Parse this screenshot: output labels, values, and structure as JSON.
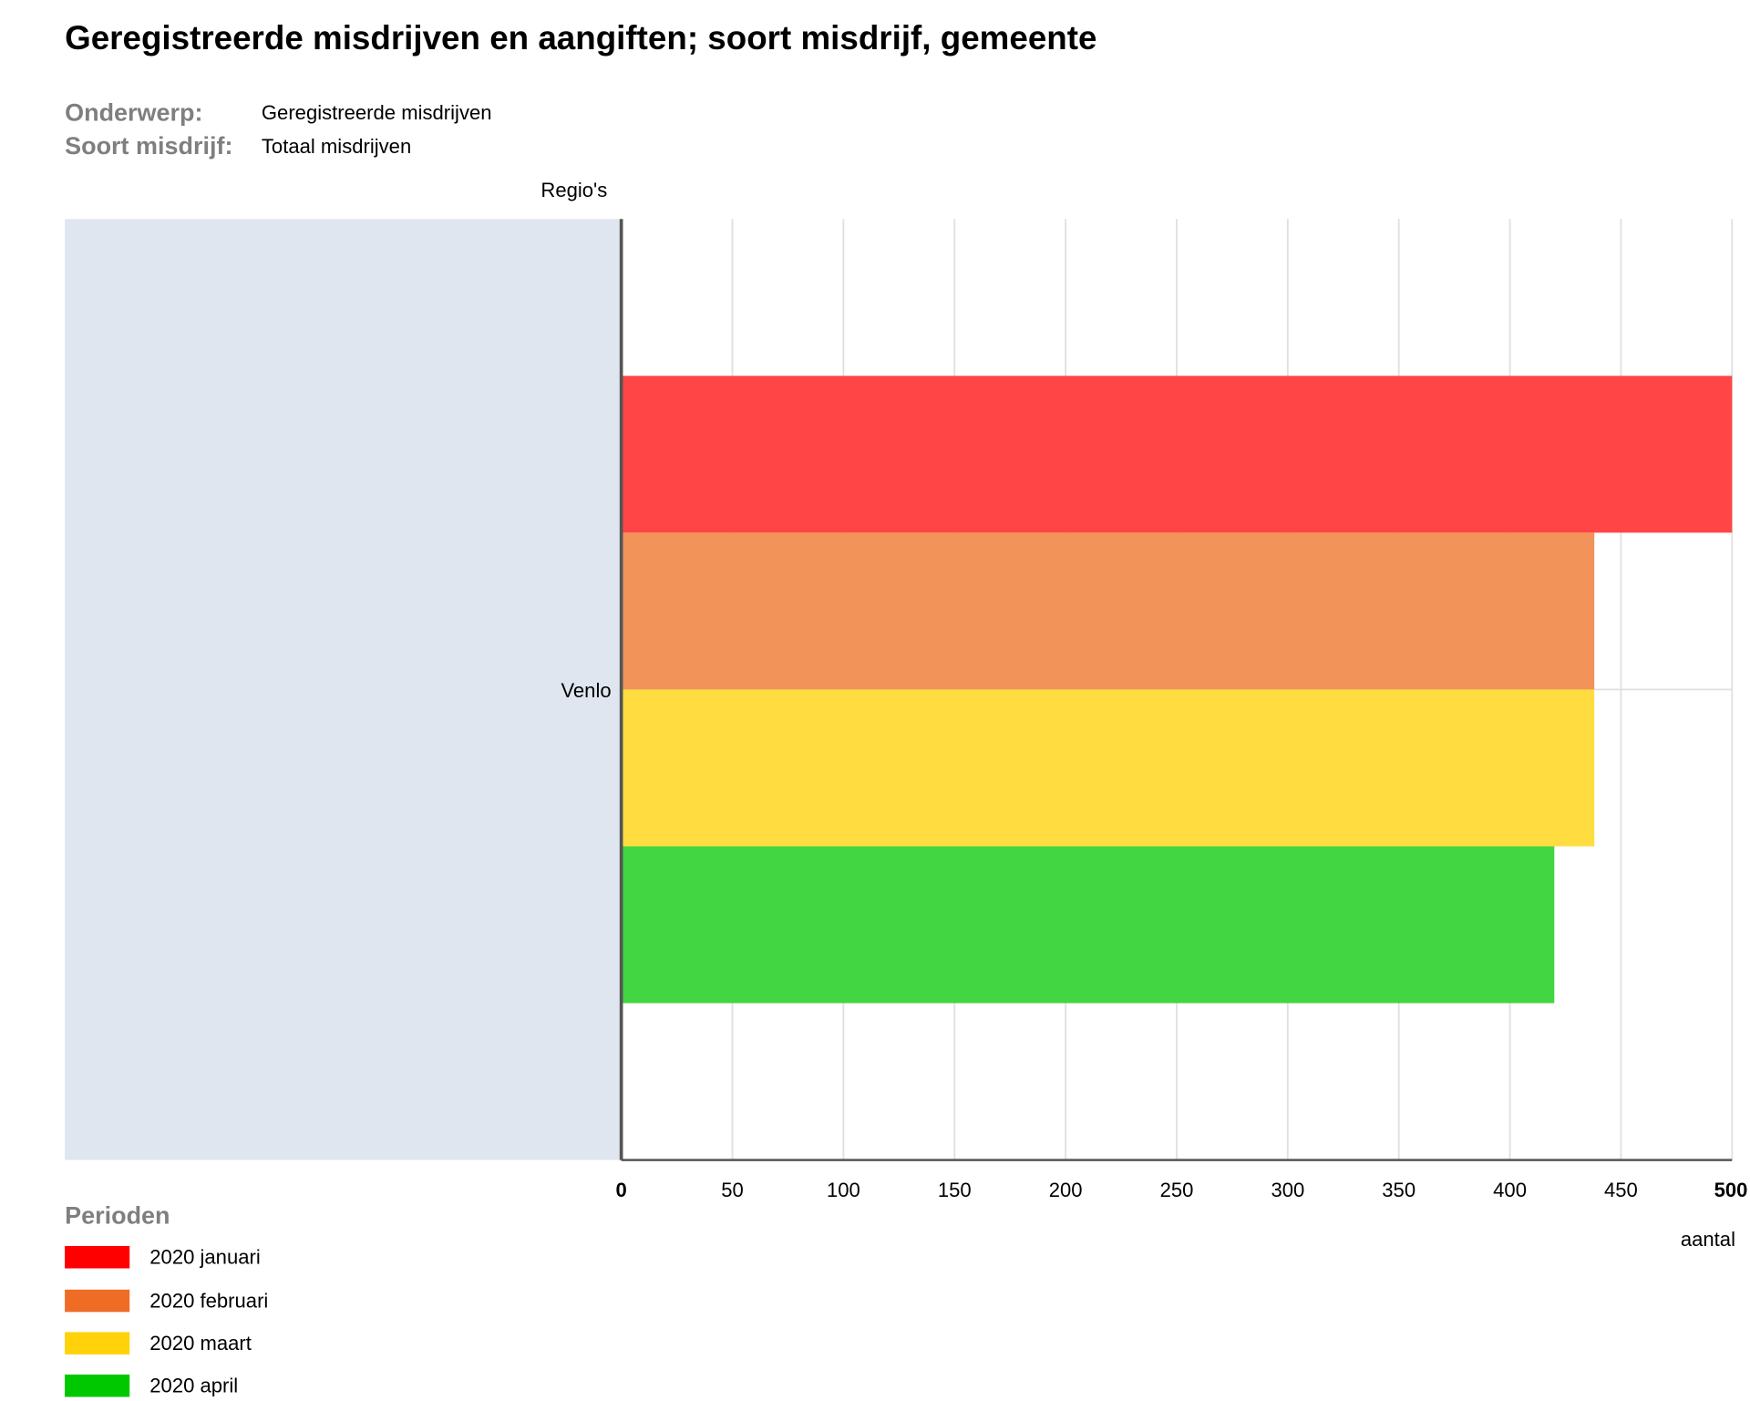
{
  "title": "Geregistreerde misdrijven en aangiften; soort misdrijf, gemeente",
  "meta": [
    {
      "key": "Onderwerp:",
      "value": "Geregistreerde misdrijven"
    },
    {
      "key": "Soort misdrijf:",
      "value": "Totaal misdrijven"
    }
  ],
  "colors": {
    "plot_band": "#dfe6f0",
    "grid": "#e0e0e0",
    "axis": "#555555"
  },
  "chart_data": {
    "type": "bar",
    "orientation": "horizontal",
    "category_axis_label": "Regio's",
    "value_axis_label": "aantal",
    "categories": [
      "Venlo"
    ],
    "xlim": [
      0,
      500
    ],
    "ticks": [
      0,
      50,
      100,
      150,
      200,
      250,
      300,
      350,
      400,
      450,
      500
    ],
    "grid": true,
    "series": [
      {
        "name": "2020 januari",
        "values": [
          500
        ],
        "color": "#ff4545",
        "legend_color": "#ff0000"
      },
      {
        "name": "2020 februari",
        "values": [
          438
        ],
        "color": "#f29359",
        "legend_color": "#ef6c25"
      },
      {
        "name": "2020 maart",
        "values": [
          438
        ],
        "color": "#ffdd40",
        "legend_color": "#ffd20a"
      },
      {
        "name": "2020 april",
        "values": [
          420
        ],
        "color": "#42d642",
        "legend_color": "#00c800"
      }
    ]
  },
  "legend": {
    "title": "Perioden",
    "placement": "bottom-left"
  }
}
